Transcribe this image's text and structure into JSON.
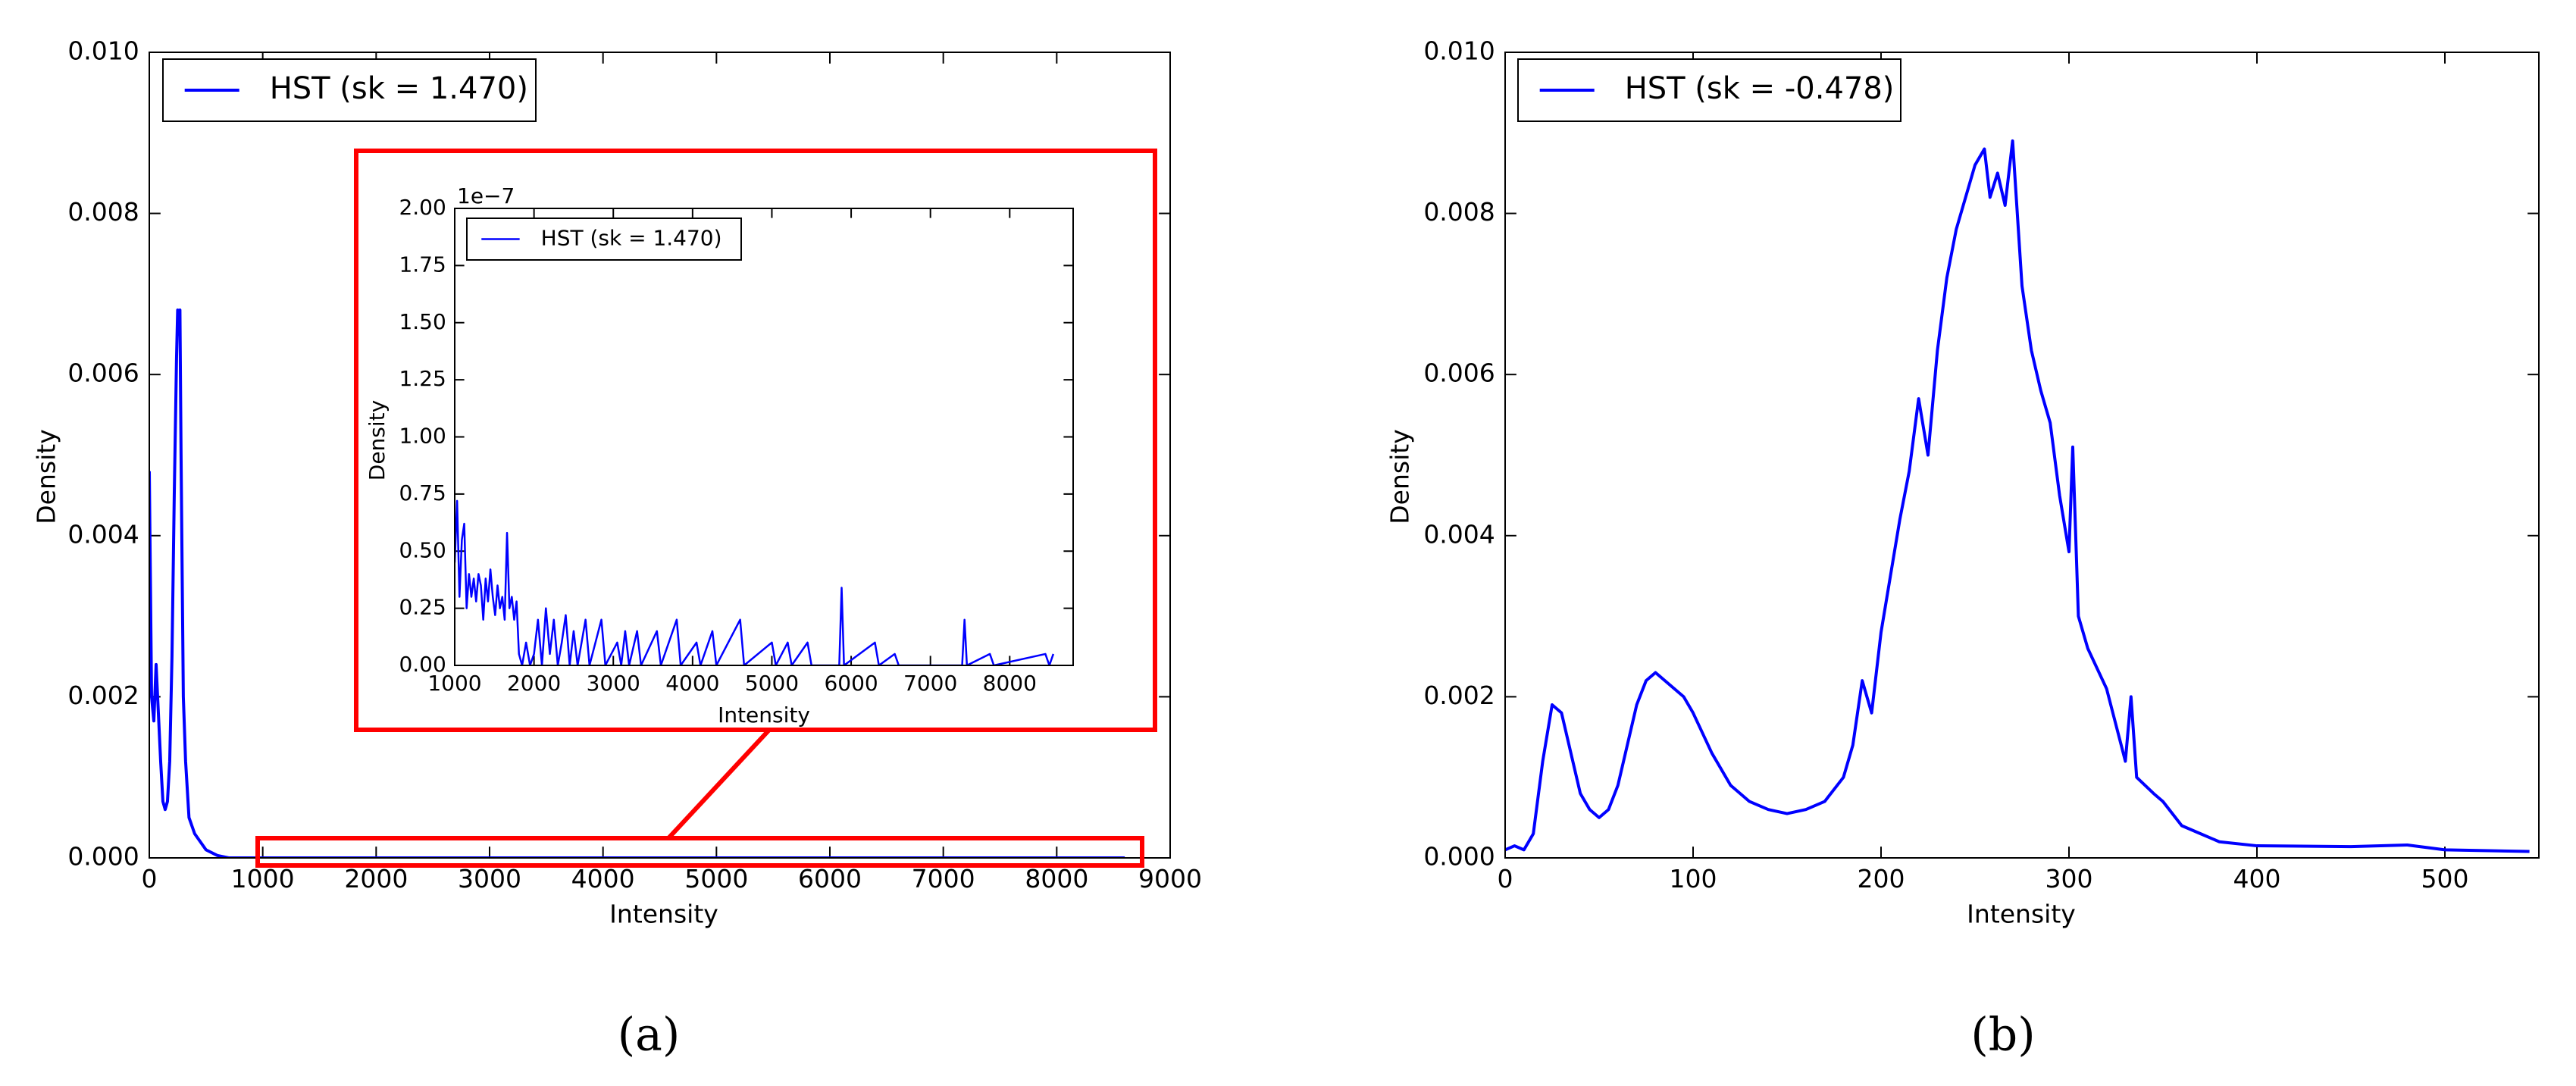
{
  "chart_data": [
    {
      "type": "line",
      "caption": "(a)",
      "xlabel": "Intensity",
      "ylabel": "Density",
      "legend": "upper left",
      "grid": false,
      "xlim": [
        0,
        9000
      ],
      "xticks": [
        0,
        1000,
        2000,
        3000,
        4000,
        5000,
        6000,
        7000,
        8000,
        9000
      ],
      "ylim": [
        0,
        0.01
      ],
      "yticks": [
        {
          "value": 0,
          "label": "0.000"
        },
        {
          "value": 0.002,
          "label": "0.002"
        },
        {
          "value": 0.004,
          "label": "0.004"
        },
        {
          "value": 0.006,
          "label": "0.006"
        },
        {
          "value": 0.008,
          "label": "0.008"
        },
        {
          "value": 0.01,
          "label": "0.010"
        }
      ],
      "x": [
        0,
        20,
        40,
        60,
        80,
        100,
        120,
        140,
        160,
        180,
        200,
        220,
        240,
        250,
        260,
        270,
        280,
        290,
        300,
        320,
        350,
        400,
        450,
        500,
        600,
        700,
        1000,
        8600
      ],
      "series": [
        {
          "name": "HST (sk = 1.470)",
          "color": "#0000ff",
          "values": [
            0.0048,
            0.002,
            0.0017,
            0.0024,
            0.0018,
            0.0012,
            0.0007,
            0.0006,
            0.0007,
            0.0012,
            0.0025,
            0.0045,
            0.0062,
            0.0068,
            0.0065,
            0.0068,
            0.005,
            0.0035,
            0.002,
            0.0012,
            0.0005,
            0.0003,
            0.0002,
            0.0001,
            3e-05,
            0,
            0,
            0
          ]
        }
      ]
    },
    {
      "type": "line",
      "xlabel": "Intensity",
      "ylabel": "Density",
      "offset_text": "1e−7",
      "legend": "upper left",
      "grid": false,
      "xlim": [
        1000,
        8800
      ],
      "xticks": [
        1000,
        2000,
        3000,
        4000,
        5000,
        6000,
        7000,
        8000
      ],
      "ylim": [
        0,
        2
      ],
      "yticks": [
        {
          "value": 0,
          "label": "0.00"
        },
        {
          "value": 0.25,
          "label": "0.25"
        },
        {
          "value": 0.5,
          "label": "0.50"
        },
        {
          "value": 0.75,
          "label": "0.75"
        },
        {
          "value": 1,
          "label": "1.00"
        },
        {
          "value": 1.25,
          "label": "1.25"
        },
        {
          "value": 1.5,
          "label": "1.50"
        },
        {
          "value": 1.75,
          "label": "1.75"
        },
        {
          "value": 2,
          "label": "2.00"
        }
      ],
      "x": [
        1000,
        1030,
        1060,
        1090,
        1120,
        1150,
        1180,
        1210,
        1240,
        1270,
        1300,
        1330,
        1360,
        1390,
        1420,
        1450,
        1480,
        1510,
        1540,
        1570,
        1600,
        1630,
        1660,
        1690,
        1720,
        1750,
        1780,
        1810,
        1850,
        1900,
        1950,
        2000,
        2050,
        2100,
        2150,
        2200,
        2250,
        2300,
        2350,
        2400,
        2450,
        2500,
        2550,
        2650,
        2700,
        2850,
        2900,
        3050,
        3100,
        3150,
        3200,
        3300,
        3350,
        3550,
        3600,
        3800,
        3850,
        4050,
        4100,
        4250,
        4300,
        4600,
        4650,
        5000,
        5050,
        5200,
        5250,
        5450,
        5500,
        5850,
        5880,
        5910,
        6300,
        6350,
        6550,
        6600,
        7400,
        7430,
        7460,
        7750,
        7800,
        8450,
        8500,
        8550
      ],
      "series": [
        {
          "name": "HST (sk = 1.470)",
          "color": "#0000ff",
          "values": [
            0.45,
            0.72,
            0.3,
            0.55,
            0.62,
            0.25,
            0.4,
            0.3,
            0.38,
            0.28,
            0.4,
            0.35,
            0.2,
            0.38,
            0.28,
            0.42,
            0.3,
            0.22,
            0.35,
            0.25,
            0.3,
            0.2,
            0.58,
            0.25,
            0.3,
            0.2,
            0.28,
            0.05,
            0,
            0.1,
            0,
            0.05,
            0.2,
            0,
            0.25,
            0.05,
            0.2,
            0,
            0.1,
            0.22,
            0,
            0.15,
            0,
            0.2,
            0,
            0.2,
            0,
            0.1,
            0,
            0.15,
            0,
            0.15,
            0,
            0.15,
            0,
            0.2,
            0,
            0.1,
            0,
            0.15,
            0,
            0.2,
            0,
            0.1,
            0,
            0.1,
            0,
            0.1,
            0,
            0,
            0.34,
            0,
            0.1,
            0,
            0.05,
            0,
            0,
            0.2,
            0,
            0.05,
            0,
            0.05,
            0,
            0.05
          ]
        }
      ]
    },
    {
      "type": "line",
      "caption": "(b)",
      "xlabel": "Intensity",
      "ylabel": "Density",
      "legend": "upper left",
      "grid": false,
      "xlim": [
        0,
        550
      ],
      "xticks": [
        0,
        100,
        200,
        300,
        400,
        500
      ],
      "ylim": [
        0,
        0.01
      ],
      "yticks": [
        {
          "value": 0,
          "label": "0.000"
        },
        {
          "value": 0.002,
          "label": "0.002"
        },
        {
          "value": 0.004,
          "label": "0.004"
        },
        {
          "value": 0.006,
          "label": "0.006"
        },
        {
          "value": 0.008,
          "label": "0.008"
        },
        {
          "value": 0.01,
          "label": "0.010"
        }
      ],
      "x": [
        0,
        5,
        10,
        15,
        20,
        25,
        30,
        35,
        40,
        45,
        50,
        55,
        60,
        65,
        70,
        75,
        80,
        85,
        90,
        95,
        100,
        110,
        120,
        130,
        140,
        150,
        160,
        170,
        180,
        185,
        190,
        195,
        200,
        205,
        210,
        215,
        220,
        225,
        230,
        235,
        240,
        245,
        250,
        255,
        258,
        262,
        266,
        270,
        275,
        280,
        285,
        290,
        295,
        300,
        302,
        305,
        310,
        320,
        330,
        333,
        336,
        345,
        350,
        360,
        370,
        380,
        400,
        450,
        480,
        500,
        545
      ],
      "series": [
        {
          "name": "HST (sk = -0.478)",
          "color": "#0000ff",
          "values": [
            0.0001,
            0.00015,
            0.0001,
            0.0003,
            0.0012,
            0.0019,
            0.0018,
            0.0013,
            0.0008,
            0.0006,
            0.0005,
            0.0006,
            0.0009,
            0.0014,
            0.0019,
            0.0022,
            0.0023,
            0.0022,
            0.0021,
            0.002,
            0.0018,
            0.0013,
            0.0009,
            0.0007,
            0.0006,
            0.00055,
            0.0006,
            0.0007,
            0.001,
            0.0014,
            0.0022,
            0.0018,
            0.0028,
            0.0035,
            0.0042,
            0.0048,
            0.0057,
            0.005,
            0.0063,
            0.0072,
            0.0078,
            0.0082,
            0.0086,
            0.0088,
            0.0082,
            0.0085,
            0.0081,
            0.0089,
            0.0071,
            0.0063,
            0.0058,
            0.0054,
            0.0045,
            0.0038,
            0.0051,
            0.003,
            0.0026,
            0.0021,
            0.0012,
            0.002,
            0.001,
            0.0008,
            0.0007,
            0.0004,
            0.0003,
            0.0002,
            0.00015,
            0.00014,
            0.00016,
            0.0001,
            8e-05
          ]
        }
      ]
    }
  ]
}
